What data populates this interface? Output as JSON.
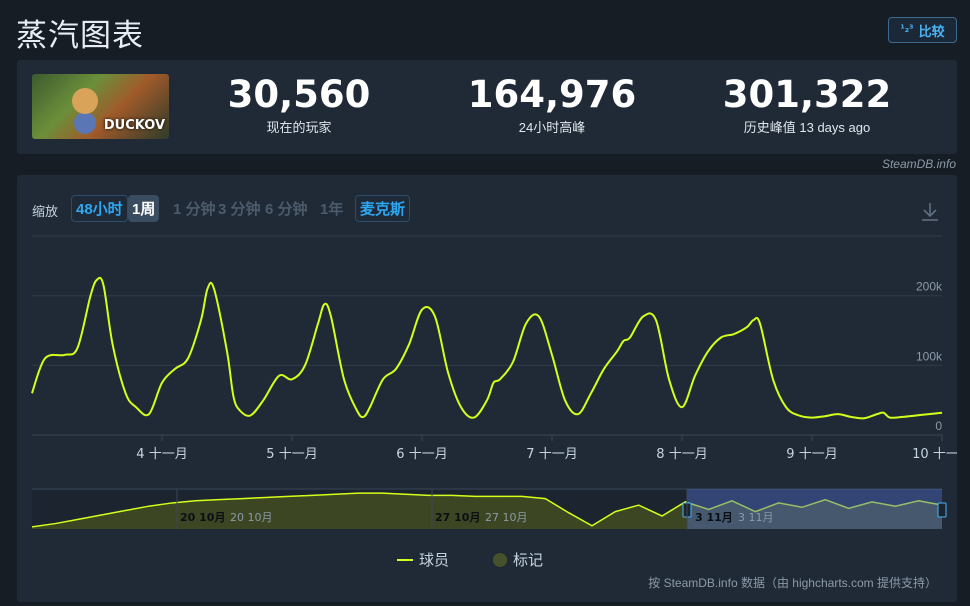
{
  "header": {
    "title": "蒸汽图表",
    "compare_label": "比较",
    "compare_icon": "1-2-3-icon"
  },
  "stats": {
    "game_logo_text": "DUCKOV",
    "items": [
      {
        "value": "30,560",
        "label": "现在的玩家"
      },
      {
        "value": "164,976",
        "label": "24小时高峰"
      },
      {
        "value": "301,322",
        "label": "历史峰值 13 days ago"
      }
    ]
  },
  "credit_top": "SteamDB.info",
  "chart_controls": {
    "zoom_label": "缩放",
    "buttons": [
      "48小时",
      "1周",
      "1 分钟",
      "3 分钟",
      "6 分钟",
      "1年",
      "麦克斯"
    ],
    "selected": "1周",
    "download_icon": "download-icon"
  },
  "chart_data": {
    "type": "line",
    "series": [
      {
        "name": "球员",
        "color": "#d4ff1a",
        "x": [
          3.0,
          3.1,
          3.25,
          3.35,
          3.45,
          3.5,
          3.55,
          3.62,
          3.72,
          3.8,
          3.9,
          4.0,
          4.1,
          4.2,
          4.3,
          4.35,
          4.4,
          4.5,
          4.55,
          4.6,
          4.68,
          4.78,
          4.9,
          5.0,
          5.1,
          5.2,
          5.25,
          5.3,
          5.4,
          5.5,
          5.55,
          5.6,
          5.7,
          5.8,
          5.9,
          6.0,
          6.1,
          6.2,
          6.3,
          6.4,
          6.5,
          6.55,
          6.6,
          6.7,
          6.8,
          6.9,
          7.0,
          7.1,
          7.2,
          7.3,
          7.4,
          7.5,
          7.55,
          7.6,
          7.7,
          7.8,
          7.9,
          8.0,
          8.1,
          8.2,
          8.3,
          8.4,
          8.5,
          8.55,
          8.6,
          8.7,
          8.8,
          8.9,
          9.0,
          9.1,
          9.2,
          9.3,
          9.4,
          9.5,
          9.55,
          9.6,
          9.7,
          9.8,
          9.9,
          10.0
        ],
        "y": [
          60000,
          110000,
          115000,
          125000,
          200000,
          223000,
          215000,
          130000,
          60000,
          40000,
          30000,
          75000,
          95000,
          110000,
          165000,
          210000,
          210000,
          120000,
          55000,
          35000,
          28000,
          50000,
          85000,
          80000,
          100000,
          160000,
          188000,
          170000,
          80000,
          35000,
          26000,
          40000,
          80000,
          95000,
          130000,
          180000,
          170000,
          90000,
          40000,
          25000,
          50000,
          75000,
          80000,
          105000,
          160000,
          170000,
          115000,
          50000,
          30000,
          60000,
          95000,
          120000,
          135000,
          140000,
          170000,
          165000,
          80000,
          40000,
          85000,
          120000,
          140000,
          145000,
          155000,
          165000,
          160000,
          80000,
          40000,
          28000,
          25000,
          27000,
          30000,
          26000,
          24000,
          30000,
          32000,
          25000,
          26000,
          28000,
          30000,
          32000
        ]
      },
      {
        "name": "标记",
        "color": "#48522a"
      }
    ],
    "x_ticks": [
      "4 十一月",
      "5 十一月",
      "6 十一月",
      "7 十一月",
      "8 十一月",
      "9 十一月",
      "10 十一月"
    ],
    "y_ticks": [
      "200k",
      "100k",
      "0"
    ],
    "ylim": [
      0,
      280000
    ],
    "navigator": {
      "labels": [
        "20 10月",
        "20 10月",
        "27 10月",
        "27 10月",
        "3 11月",
        "3 11月"
      ],
      "values": [
        2000,
        5000,
        9000,
        13000,
        17000,
        21000,
        24000,
        26000,
        27000,
        28000,
        29000,
        30000,
        31000,
        32000,
        33000,
        33000,
        32000,
        31000,
        31000,
        30000,
        30000,
        30000,
        28000,
        15000,
        3000,
        16000,
        22000,
        12000,
        25000,
        18000,
        26000,
        16000,
        24000,
        20000,
        27000,
        19000,
        25000,
        21000,
        26000,
        22000
      ]
    }
  },
  "legend": [
    "球员",
    "标记"
  ],
  "credit_bottom": "按 SteamDB.info 数据（由 highcharts.com 提供支持）"
}
